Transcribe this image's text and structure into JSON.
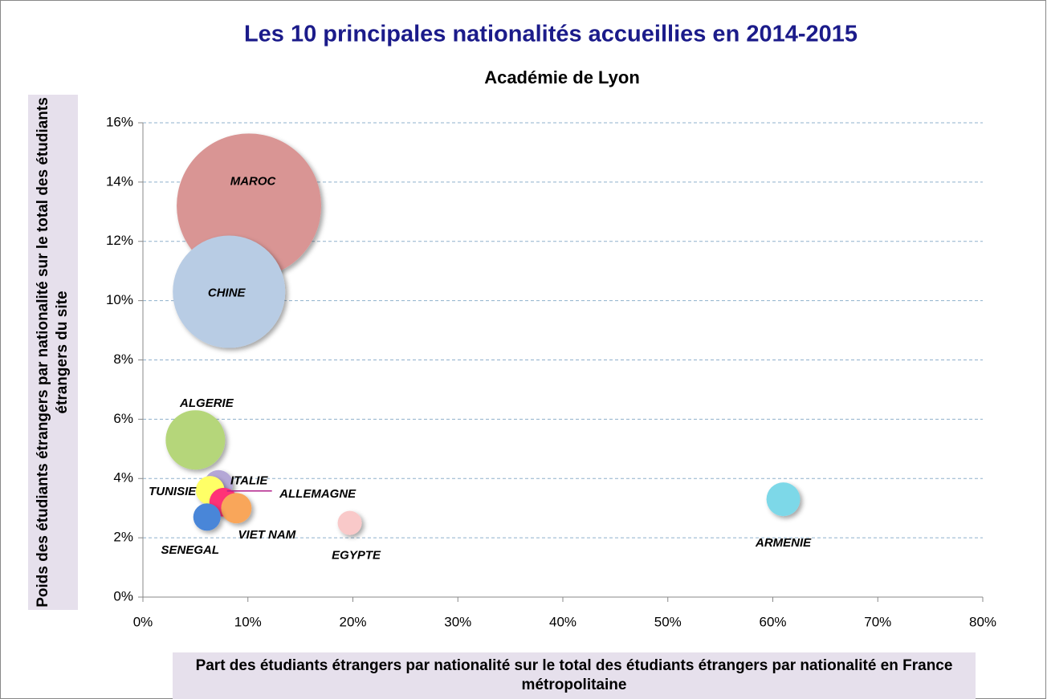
{
  "chart_data": {
    "type": "bubble",
    "title": "Les 10 principales nationalités accueillies en 2014-2015",
    "subtitle": "Académie de Lyon",
    "x_label": "Part des étudiants étrangers par nationalité sur le total des étudiants étrangers par nationalité en France métropolitaine",
    "y_label": "Poids des étudiants étrangers par nationalité sur le total des étudiants étrangers du site",
    "xlim": [
      0,
      80
    ],
    "xticks": [
      {
        "value": 0,
        "label": "0%"
      },
      {
        "value": 10,
        "label": "10%"
      },
      {
        "value": 20,
        "label": "20%"
      },
      {
        "value": 30,
        "label": "30%"
      },
      {
        "value": 40,
        "label": "40%"
      },
      {
        "value": 50,
        "label": "50%"
      },
      {
        "value": 60,
        "label": "60%"
      },
      {
        "value": 70,
        "label": "70%"
      },
      {
        "value": 80,
        "label": "80%"
      }
    ],
    "ylim": [
      0,
      16
    ],
    "yticks": [
      {
        "value": 0,
        "label": "0%"
      },
      {
        "value": 2,
        "label": "2%"
      },
      {
        "value": 4,
        "label": "4%"
      },
      {
        "value": 6,
        "label": "6%"
      },
      {
        "value": 8,
        "label": "8%"
      },
      {
        "value": 10,
        "label": "10%"
      },
      {
        "value": 12,
        "label": "12%"
      },
      {
        "value": 14,
        "label": "14%"
      },
      {
        "value": 16,
        "label": "16%"
      }
    ],
    "grid": true,
    "series": [
      {
        "name": "MAROC",
        "color": "#d99594",
        "x": 10.1,
        "y": 13.2,
        "size": 81
      },
      {
        "name": "CHINE",
        "color": "#b8cce4",
        "x": 8.2,
        "y": 10.3,
        "size": 49
      },
      {
        "name": "ALGERIE",
        "color": "#b5d67a",
        "x": 5.0,
        "y": 5.3,
        "size": 13.7
      },
      {
        "name": "ITALIE",
        "color": "#b4a7d6",
        "x": 7.2,
        "y": 3.8,
        "size": 3.2
      },
      {
        "name": "TUNISIE",
        "color": "#ffff66",
        "x": 6.4,
        "y": 3.6,
        "size": 3.2
      },
      {
        "name": "ALLEMAGNE",
        "color": "#ff3377",
        "x": 7.7,
        "y": 3.2,
        "size": 3.2
      },
      {
        "name": "VIET NAM",
        "color": "#f9a65a",
        "x": 8.9,
        "y": 3.0,
        "size": 3.6
      },
      {
        "name": "SENEGAL",
        "color": "#4a86d8",
        "x": 6.1,
        "y": 2.7,
        "size": 2.9
      },
      {
        "name": "EGYPTE",
        "color": "#f9c9c9",
        "x": 19.7,
        "y": 2.5,
        "size": 2.25
      },
      {
        "name": "ARMENIE",
        "color": "#7dd8e8",
        "x": 61.0,
        "y": 3.3,
        "size": 4.4
      }
    ]
  }
}
